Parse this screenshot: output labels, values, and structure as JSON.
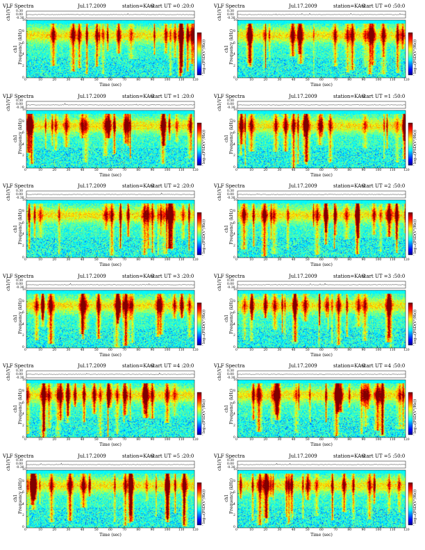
{
  "chart_data": [
    {
      "type": "heatmap",
      "title": "VLF Spectra",
      "date": "Jul.17.2009",
      "station": "station=KAG",
      "start_ut": "start  UT =0 :20:0",
      "top_ylabel": "ch1(V)",
      "top_yticks": [
        "0.30",
        "0.00",
        "-0.30"
      ],
      "xlabel": "Time (sec)",
      "ylabel_line1": "ch1",
      "ylabel_line2": "Frequency (kHz)",
      "xticks": [
        "0",
        "10",
        "20",
        "30",
        "40",
        "50",
        "60",
        "70",
        "80",
        "90",
        "100",
        "110",
        "120"
      ],
      "xlim": [
        0,
        120
      ],
      "yticks": [
        "0",
        "2",
        "4",
        "6",
        "8",
        "10"
      ],
      "ylim": [
        0,
        10
      ],
      "colorbar_label": "log₁₀(PSD(V²/Hz))",
      "colorbar_ticks": [
        "",
        "-"
      ]
    },
    {
      "type": "heatmap",
      "title": "VLF Spectra",
      "date": "Jul.17.2009",
      "station": "station=KAG",
      "start_ut": "start  UT =0 :50:0",
      "top_ylabel": "ch1(V)",
      "top_yticks": [
        "0.30",
        "0.00",
        "-0.30"
      ],
      "xlabel": "Time (sec)",
      "ylabel_line1": "ch1",
      "ylabel_line2": "Frequency (kHz)",
      "xticks": [
        "0",
        "10",
        "20",
        "30",
        "40",
        "50",
        "60",
        "70",
        "80",
        "90",
        "100",
        "110",
        "120"
      ],
      "xlim": [
        0,
        120
      ],
      "yticks": [
        "0",
        "2",
        "4",
        "6",
        "8",
        "10"
      ],
      "ylim": [
        0,
        10
      ],
      "colorbar_label": "log₁₀(PSD(V²/Hz))",
      "colorbar_ticks": [
        "",
        "-"
      ]
    },
    {
      "type": "heatmap",
      "title": "VLF Spectra",
      "date": "Jul.17.2009",
      "station": "station=KAG",
      "start_ut": "start  UT =1 :20:0",
      "top_ylabel": "ch1(V)",
      "top_yticks": [
        "0.30",
        "0.00",
        "-0.30"
      ],
      "xlabel": "Time (sec)",
      "ylabel_line1": "ch1",
      "ylabel_line2": "Frequency (kHz)",
      "xticks": [
        "0",
        "10",
        "20",
        "30",
        "40",
        "50",
        "60",
        "70",
        "80",
        "90",
        "100",
        "110",
        "120"
      ],
      "xlim": [
        0,
        120
      ],
      "yticks": [
        "0",
        "2",
        "4",
        "6",
        "8",
        "10"
      ],
      "ylim": [
        0,
        10
      ],
      "colorbar_label": "log₁₀(PSD(V²/Hz))",
      "colorbar_ticks": [
        "",
        "-"
      ]
    },
    {
      "type": "heatmap",
      "title": "VLF Spectra",
      "date": "Jul.17.2009",
      "station": "station=KAG",
      "start_ut": "start  UT =1 :50:0",
      "top_ylabel": "ch1(V)",
      "top_yticks": [
        "0.30",
        "0.00",
        "-0.30"
      ],
      "xlabel": "Time (sec)",
      "ylabel_line1": "ch1",
      "ylabel_line2": "Frequency (kHz)",
      "xticks": [
        "0",
        "10",
        "20",
        "30",
        "40",
        "50",
        "60",
        "70",
        "80",
        "90",
        "100",
        "110",
        "120"
      ],
      "xlim": [
        0,
        120
      ],
      "yticks": [
        "0",
        "2",
        "4",
        "6",
        "8",
        "10"
      ],
      "ylim": [
        0,
        10
      ],
      "colorbar_label": "log₁₀(PSD(V²/Hz))",
      "colorbar_ticks": [
        "",
        "-"
      ]
    },
    {
      "type": "heatmap",
      "title": "VLF Spectra",
      "date": "Jul.17.2009",
      "station": "station=KAG",
      "start_ut": "start  UT =2 :20:0",
      "top_ylabel": "ch1(V)",
      "top_yticks": [
        "0.30",
        "0.00",
        "-0.30"
      ],
      "xlabel": "Time (sec)",
      "ylabel_line1": "ch1",
      "ylabel_line2": "Frequency (kHz)",
      "xticks": [
        "0",
        "10",
        "20",
        "30",
        "40",
        "50",
        "60",
        "70",
        "80",
        "90",
        "100",
        "110",
        "120"
      ],
      "xlim": [
        0,
        120
      ],
      "yticks": [
        "0",
        "2",
        "4",
        "6",
        "8",
        "10"
      ],
      "ylim": [
        0,
        10
      ],
      "colorbar_label": "log₁₀(PSD(V²/Hz))",
      "colorbar_ticks": [
        "",
        "-"
      ]
    },
    {
      "type": "heatmap",
      "title": "VLF Spectra",
      "date": "Jul.17.2009",
      "station": "station=KAG",
      "start_ut": "start  UT =2 :50:0",
      "top_ylabel": "ch1(V)",
      "top_yticks": [
        "0.30",
        "0.00",
        "-0.30"
      ],
      "xlabel": "Time (sec)",
      "ylabel_line1": "ch1",
      "ylabel_line2": "Frequency (kHz)",
      "xticks": [
        "0",
        "10",
        "20",
        "30",
        "40",
        "50",
        "60",
        "70",
        "80",
        "90",
        "100",
        "110",
        "120"
      ],
      "xlim": [
        0,
        120
      ],
      "yticks": [
        "0",
        "2",
        "4",
        "6",
        "8",
        "10"
      ],
      "ylim": [
        0,
        10
      ],
      "colorbar_label": "log₁₀(PSD(V²/Hz))",
      "colorbar_ticks": [
        "",
        "-"
      ]
    },
    {
      "type": "heatmap",
      "title": "VLF Spectra",
      "date": "Jul.17.2009",
      "station": "station=KAG",
      "start_ut": "start  UT =3 :20:0",
      "top_ylabel": "ch1(V)",
      "top_yticks": [
        "0.30",
        "0.00",
        "-0.30"
      ],
      "xlabel": "Time (sec)",
      "ylabel_line1": "ch1",
      "ylabel_line2": "Frequency (kHz)",
      "xticks": [
        "0",
        "10",
        "20",
        "30",
        "40",
        "50",
        "60",
        "70",
        "80",
        "90",
        "100",
        "110",
        "120"
      ],
      "xlim": [
        0,
        120
      ],
      "yticks": [
        "0",
        "2",
        "4",
        "6",
        "8",
        "10"
      ],
      "ylim": [
        0,
        10
      ],
      "colorbar_label": "log₁₀(PSD(V²/Hz))",
      "colorbar_ticks": [
        "",
        "-"
      ]
    },
    {
      "type": "heatmap",
      "title": "VLF Spectra",
      "date": "Jul.17.2009",
      "station": "station=KAG",
      "start_ut": "start  UT =3 :50:0",
      "top_ylabel": "ch1(V)",
      "top_yticks": [
        "0.30",
        "0.00",
        "-0.30"
      ],
      "xlabel": "Time (sec)",
      "ylabel_line1": "ch1",
      "ylabel_line2": "Frequency (kHz)",
      "xticks": [
        "0",
        "10",
        "20",
        "30",
        "40",
        "50",
        "60",
        "70",
        "80",
        "90",
        "100",
        "110",
        "120"
      ],
      "xlim": [
        0,
        120
      ],
      "yticks": [
        "0",
        "2",
        "4",
        "6",
        "8",
        "10"
      ],
      "ylim": [
        0,
        10
      ],
      "colorbar_label": "log₁₀(PSD(V²/Hz))",
      "colorbar_ticks": [
        "",
        "-"
      ]
    },
    {
      "type": "heatmap",
      "title": "VLF Spectra",
      "date": "Jul.17.2009",
      "station": "station=KAG",
      "start_ut": "start  UT =4 :20:0",
      "top_ylabel": "ch1(V)",
      "top_yticks": [
        "0.30",
        "0.00",
        "-0.30"
      ],
      "xlabel": "Time (sec)",
      "ylabel_line1": "ch1",
      "ylabel_line2": "Frequency (kHz)",
      "xticks": [
        "0",
        "10",
        "20",
        "30",
        "40",
        "50",
        "60",
        "70",
        "80",
        "90",
        "100",
        "110",
        "120"
      ],
      "xlim": [
        0,
        120
      ],
      "yticks": [
        "0",
        "2",
        "4",
        "6",
        "8",
        "10"
      ],
      "ylim": [
        0,
        10
      ],
      "colorbar_label": "log₁₀(PSD(V²/Hz))",
      "colorbar_ticks": [
        "",
        "-"
      ]
    },
    {
      "type": "heatmap",
      "title": "VLF Spectra",
      "date": "Jul.17.2009",
      "station": "station=KAG",
      "start_ut": "start  UT =4 :50:0",
      "top_ylabel": "ch1(V)",
      "top_yticks": [
        "0.30",
        "0.00",
        "-0.30"
      ],
      "xlabel": "Time (sec)",
      "ylabel_line1": "ch1",
      "ylabel_line2": "Frequency (kHz)",
      "xticks": [
        "0",
        "10",
        "20",
        "30",
        "40",
        "50",
        "60",
        "70",
        "80",
        "90",
        "100",
        "110",
        "120"
      ],
      "xlim": [
        0,
        120
      ],
      "yticks": [
        "0",
        "2",
        "4",
        "6",
        "8",
        "10"
      ],
      "ylim": [
        0,
        10
      ],
      "colorbar_label": "log₁₀(PSD(V²/Hz))",
      "colorbar_ticks": [
        "",
        "-"
      ]
    },
    {
      "type": "heatmap",
      "title": "VLF Spectra",
      "date": "Jul.17.2009",
      "station": "station=KAG",
      "start_ut": "start  UT =5 :20:0",
      "top_ylabel": "ch1(V)",
      "top_yticks": [
        "0.30",
        "0.00",
        "-0.30"
      ],
      "xlabel": "Time (sec)",
      "ylabel_line1": "ch1",
      "ylabel_line2": "Frequency (kHz)",
      "xticks": [
        "0",
        "10",
        "20",
        "30",
        "40",
        "50",
        "60",
        "70",
        "80",
        "90",
        "100",
        "110",
        "120"
      ],
      "xlim": [
        0,
        120
      ],
      "yticks": [
        "0",
        "2",
        "4",
        "6",
        "8",
        "10"
      ],
      "ylim": [
        0,
        10
      ],
      "colorbar_label": "log₁₀(PSD(V²/Hz))",
      "colorbar_ticks": [
        "",
        "-"
      ]
    },
    {
      "type": "heatmap",
      "title": "VLF Spectra",
      "date": "Jul.17.2009",
      "station": "station=KAG",
      "start_ut": "start  UT =5 :50:0",
      "top_ylabel": "ch1(V)",
      "top_yticks": [
        "0.30",
        "0.00",
        "-0.30"
      ],
      "xlabel": "Time (sec)",
      "ylabel_line1": "ch1",
      "ylabel_line2": "Frequency (kHz)",
      "xticks": [
        "0",
        "10",
        "20",
        "30",
        "40",
        "50",
        "60",
        "70",
        "80",
        "90",
        "100",
        "110",
        "120"
      ],
      "xlim": [
        0,
        120
      ],
      "yticks": [
        "0",
        "2",
        "4",
        "6",
        "8",
        "10"
      ],
      "ylim": [
        0,
        10
      ],
      "colorbar_label": "log₁₀(PSD(V²/Hz))",
      "colorbar_ticks": [
        "",
        "-"
      ]
    }
  ]
}
